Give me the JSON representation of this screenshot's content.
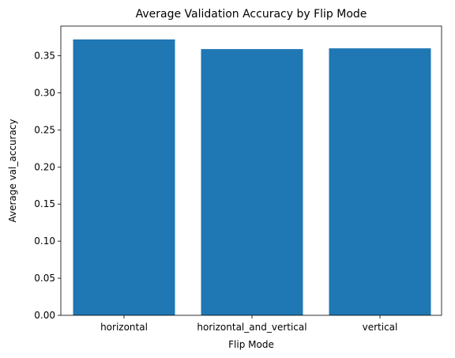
{
  "chart_data": {
    "type": "bar",
    "title": "Average Validation Accuracy by Flip Mode",
    "xlabel": "Flip Mode",
    "ylabel": "Average val_accuracy",
    "categories": [
      "horizontal",
      "horizontal_and_vertical",
      "vertical"
    ],
    "values": [
      0.372,
      0.359,
      0.36
    ],
    "ylim": [
      0,
      0.39
    ],
    "yticks": [
      "0.00",
      "0.05",
      "0.10",
      "0.15",
      "0.20",
      "0.25",
      "0.30",
      "0.35"
    ],
    "bar_color": "#1f77b4",
    "grid": false
  }
}
